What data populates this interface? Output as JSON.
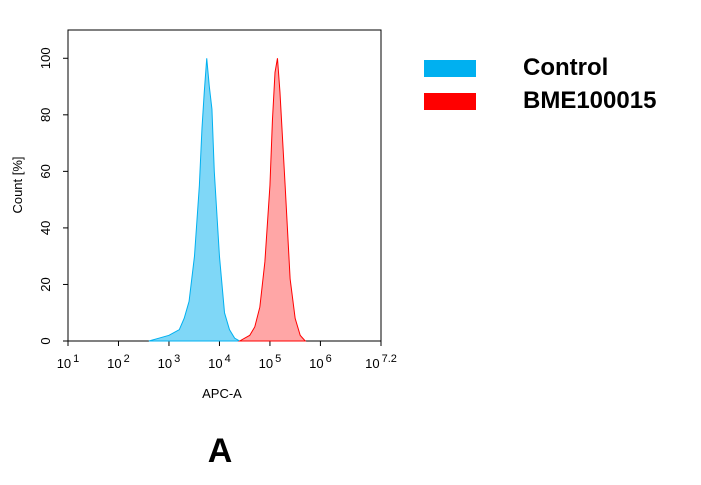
{
  "chart_data": {
    "type": "area",
    "caption": "A",
    "x_label": "APC-A",
    "y_label": "Count [%]",
    "xscale": "log",
    "xlim": [
      10,
      15848931.92
    ],
    "ylim": [
      0,
      110
    ],
    "xticks": [
      {
        "value": 10,
        "label": "10",
        "exponent": "1"
      },
      {
        "value": 100,
        "label": "10",
        "exponent": "2"
      },
      {
        "value": 1000,
        "label": "10",
        "exponent": "3"
      },
      {
        "value": 10000,
        "label": "10",
        "exponent": "4"
      },
      {
        "value": 100000,
        "label": "10",
        "exponent": "5"
      },
      {
        "value": 1000000,
        "label": "10",
        "exponent": "6"
      },
      {
        "value": 15848931.92,
        "label": "10",
        "exponent": "7.2"
      }
    ],
    "yticks": [
      0,
      20,
      40,
      60,
      80,
      100
    ],
    "series": [
      {
        "name": "Control",
        "color": "#00b0f0",
        "fill_opacity": 0.5,
        "x": [
          400,
          630,
          1000,
          1600,
          2000,
          2500,
          3200,
          4000,
          4500,
          5000,
          5600,
          6300,
          7100,
          7900,
          10000,
          12600,
          15800,
          20000,
          25100
        ],
        "values": [
          0,
          1,
          2,
          4,
          8,
          14,
          30,
          55,
          75,
          88,
          100,
          90,
          82,
          60,
          30,
          10,
          4,
          1,
          0
        ]
      },
      {
        "name": "BME100015",
        "color": "#ff0000",
        "fill_opacity": 0.35,
        "x": [
          25100,
          39800,
          50100,
          63100,
          79400,
          100000,
          112000,
          126000,
          141000,
          158000,
          200000,
          251000,
          316000,
          398000,
          501000
        ],
        "values": [
          0,
          2,
          5,
          12,
          28,
          55,
          78,
          95,
          100,
          88,
          55,
          22,
          8,
          2,
          0
        ]
      }
    ]
  }
}
